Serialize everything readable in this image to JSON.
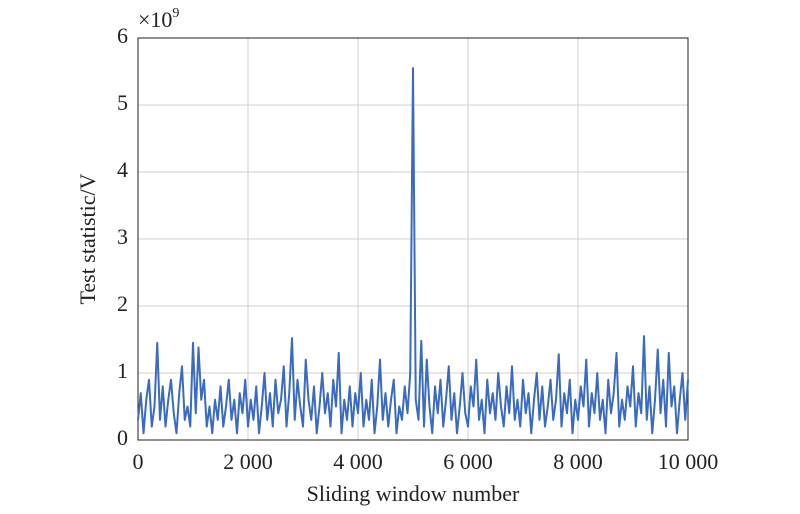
{
  "chart_data": {
    "type": "line",
    "xlabel": "Sliding window number",
    "ylabel": "Test statistic/V",
    "y_multiplier": {
      "base": "×10",
      "exponent": "9"
    },
    "xlim": [
      0,
      10000
    ],
    "ylim": [
      0,
      6
    ],
    "xticks": [
      0,
      {
        "value": 2000,
        "label": "2 000"
      },
      {
        "value": 4000,
        "label": "4 000"
      },
      {
        "value": 6000,
        "label": "6 000"
      },
      {
        "value": 8000,
        "label": "8 000"
      },
      {
        "value": 10000,
        "label": "10 000"
      }
    ],
    "yticks": [
      0,
      1,
      2,
      3,
      4,
      5,
      6
    ],
    "grid": true,
    "x": [
      0,
      50,
      100,
      150,
      200,
      250,
      300,
      350,
      400,
      450,
      500,
      550,
      600,
      650,
      700,
      750,
      800,
      850,
      900,
      950,
      1000,
      1050,
      1100,
      1150,
      1200,
      1250,
      1300,
      1350,
      1400,
      1450,
      1500,
      1550,
      1600,
      1650,
      1700,
      1750,
      1800,
      1850,
      1900,
      1950,
      2000,
      2050,
      2100,
      2150,
      2200,
      2250,
      2300,
      2350,
      2400,
      2450,
      2500,
      2550,
      2600,
      2650,
      2700,
      2750,
      2800,
      2850,
      2900,
      2950,
      3000,
      3050,
      3100,
      3150,
      3200,
      3250,
      3300,
      3350,
      3400,
      3450,
      3500,
      3550,
      3600,
      3650,
      3700,
      3750,
      3800,
      3850,
      3900,
      3950,
      4000,
      4050,
      4100,
      4150,
      4200,
      4250,
      4300,
      4350,
      4400,
      4450,
      4500,
      4550,
      4600,
      4650,
      4700,
      4750,
      4800,
      4850,
      4900,
      4950,
      5000,
      5050,
      5100,
      5150,
      5200,
      5250,
      5300,
      5350,
      5400,
      5450,
      5500,
      5550,
      5600,
      5650,
      5700,
      5750,
      5800,
      5850,
      5900,
      5950,
      6000,
      6050,
      6100,
      6150,
      6200,
      6250,
      6300,
      6350,
      6400,
      6450,
      6500,
      6550,
      6600,
      6650,
      6700,
      6750,
      6800,
      6850,
      6900,
      6950,
      7000,
      7050,
      7100,
      7150,
      7200,
      7250,
      7300,
      7350,
      7400,
      7450,
      7500,
      7550,
      7600,
      7650,
      7700,
      7750,
      7800,
      7850,
      7900,
      7950,
      8000,
      8050,
      8100,
      8150,
      8200,
      8250,
      8300,
      8350,
      8400,
      8450,
      8500,
      8550,
      8600,
      8650,
      8700,
      8750,
      8800,
      8850,
      8900,
      8950,
      9000,
      9050,
      9100,
      9150,
      9200,
      9250,
      9300,
      9350,
      9400,
      9450,
      9500,
      9550,
      9600,
      9650,
      9700,
      9750,
      9800,
      9850,
      9900,
      9950,
      10000
    ],
    "series": [
      {
        "color": "#3a6bbf",
        "values": [
          0.3,
          0.7,
          0.1,
          0.6,
          0.9,
          0.2,
          0.5,
          1.45,
          0.3,
          0.8,
          0.2,
          0.6,
          0.9,
          0.4,
          0.1,
          0.7,
          1.1,
          0.3,
          0.5,
          0.2,
          1.45,
          0.4,
          1.38,
          0.6,
          0.9,
          0.2,
          0.5,
          0.1,
          0.6,
          0.3,
          0.8,
          0.2,
          0.5,
          0.9,
          0.3,
          0.6,
          0.1,
          0.7,
          0.4,
          0.9,
          0.2,
          0.6,
          0.3,
          0.8,
          0.1,
          0.5,
          1.0,
          0.3,
          0.7,
          0.2,
          0.9,
          0.4,
          0.6,
          1.1,
          0.2,
          0.7,
          1.52,
          0.3,
          0.9,
          0.5,
          0.2,
          1.2,
          0.6,
          0.3,
          0.8,
          0.1,
          0.5,
          1.0,
          0.4,
          0.7,
          0.2,
          0.9,
          0.5,
          1.3,
          0.1,
          0.6,
          0.3,
          0.8,
          0.2,
          0.7,
          0.4,
          1.0,
          0.2,
          0.6,
          0.3,
          0.9,
          0.1,
          0.5,
          1.2,
          0.3,
          0.7,
          0.2,
          0.6,
          0.9,
          0.1,
          0.5,
          0.3,
          0.8,
          0.4,
          1.0,
          5.55,
          0.6,
          0.3,
          1.48,
          0.2,
          1.2,
          0.5,
          0.1,
          0.8,
          0.4,
          0.9,
          0.2,
          0.6,
          1.1,
          0.3,
          0.7,
          0.1,
          0.5,
          1.0,
          0.4,
          0.2,
          0.8,
          0.5,
          1.2,
          0.3,
          0.6,
          0.1,
          0.9,
          0.4,
          0.7,
          0.3,
          1.0,
          0.5,
          0.2,
          0.8,
          0.4,
          1.1,
          0.3,
          0.6,
          0.2,
          0.9,
          0.4,
          0.7,
          0.1,
          0.6,
          1.0,
          0.3,
          0.8,
          0.2,
          0.5,
          0.9,
          0.3,
          0.6,
          1.28,
          0.2,
          0.7,
          0.4,
          0.9,
          0.1,
          0.6,
          0.3,
          0.8,
          0.5,
          1.2,
          0.2,
          0.7,
          0.4,
          1.0,
          0.3,
          0.6,
          0.1,
          0.9,
          0.4,
          0.7,
          1.3,
          0.2,
          0.6,
          0.3,
          0.8,
          0.5,
          1.1,
          0.2,
          0.7,
          0.4,
          1.55,
          0.3,
          0.8,
          0.1,
          0.6,
          1.35,
          0.4,
          0.9,
          0.2,
          1.3,
          0.5,
          0.8,
          0.1,
          0.6,
          1.0,
          0.3,
          0.9
        ]
      }
    ]
  }
}
